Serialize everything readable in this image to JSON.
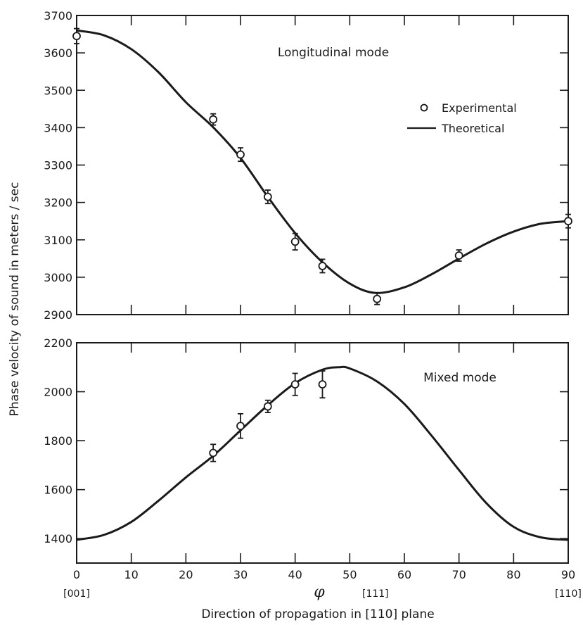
{
  "chart_data": [
    {
      "type": "line",
      "title": "Longitudinal mode",
      "xlabel": "Direction of propagation in [110] plane",
      "ylabel": "Phase velocity of sound in meters / sec",
      "xlim": [
        0,
        90
      ],
      "ylim": [
        2900,
        3700
      ],
      "x_ticks": [
        0,
        10,
        20,
        30,
        40,
        50,
        60,
        70,
        80,
        90
      ],
      "y_ticks": [
        2900,
        3000,
        3100,
        3200,
        3300,
        3400,
        3500,
        3600,
        3700
      ],
      "legend_position": "right",
      "series": [
        {
          "name": "Experimental",
          "kind": "scatter",
          "x": [
            0,
            25,
            30,
            35,
            40,
            45,
            55,
            70,
            90
          ],
          "y": [
            3645,
            3422,
            3328,
            3215,
            3095,
            3030,
            2942,
            3058,
            3150
          ],
          "error": [
            20,
            15,
            18,
            18,
            22,
            18,
            15,
            15,
            18
          ]
        },
        {
          "name": "Theoretical",
          "kind": "line",
          "x": [
            0,
            5,
            10,
            15,
            20,
            25,
            30,
            35,
            40,
            45,
            50,
            54.7,
            60,
            65,
            70,
            75,
            80,
            85,
            90
          ],
          "y": [
            3660,
            3647,
            3610,
            3548,
            3468,
            3401,
            3319,
            3215,
            3118,
            3040,
            2983,
            2958,
            2973,
            3008,
            3050,
            3090,
            3122,
            3143,
            3150
          ]
        }
      ]
    },
    {
      "type": "line",
      "title": "Mixed mode",
      "xlabel": "Direction of propagation in [110] plane",
      "ylabel": "Phase velocity of sound in meters / sec",
      "xlim": [
        0,
        90
      ],
      "ylim": [
        1300,
        2200
      ],
      "x_ticks": [
        0,
        10,
        20,
        30,
        40,
        50,
        60,
        70,
        80,
        90
      ],
      "x_tick_labels": [
        "0",
        "10",
        "20",
        "30",
        "40",
        "50",
        "60",
        "70",
        "80",
        "90"
      ],
      "y_ticks": [
        1400,
        1600,
        1800,
        2000,
        2200
      ],
      "x_direction_labels": [
        {
          "x": 0,
          "label": "[001]"
        },
        {
          "x": 54.7,
          "label": "[111]"
        },
        {
          "x": 90,
          "label": "[110]"
        }
      ],
      "x_symbol": "φ",
      "series": [
        {
          "name": "Experimental",
          "kind": "scatter",
          "x": [
            25,
            30,
            35,
            40,
            45
          ],
          "y": [
            1750,
            1860,
            1940,
            2030,
            2030
          ],
          "error": [
            35,
            50,
            25,
            45,
            55
          ]
        },
        {
          "name": "Theoretical",
          "kind": "line",
          "x": [
            0,
            5,
            10,
            15,
            20,
            25,
            30,
            35,
            40,
            45,
            48,
            50,
            55,
            60,
            65,
            70,
            75,
            80,
            85,
            90
          ],
          "y": [
            1395,
            1415,
            1468,
            1555,
            1650,
            1738,
            1842,
            1945,
            2035,
            2090,
            2100,
            2095,
            2042,
            1950,
            1820,
            1680,
            1545,
            1448,
            1405,
            1395
          ]
        }
      ]
    }
  ],
  "legend": {
    "experimental": "Experimental",
    "theoretical": "Theoretical"
  }
}
